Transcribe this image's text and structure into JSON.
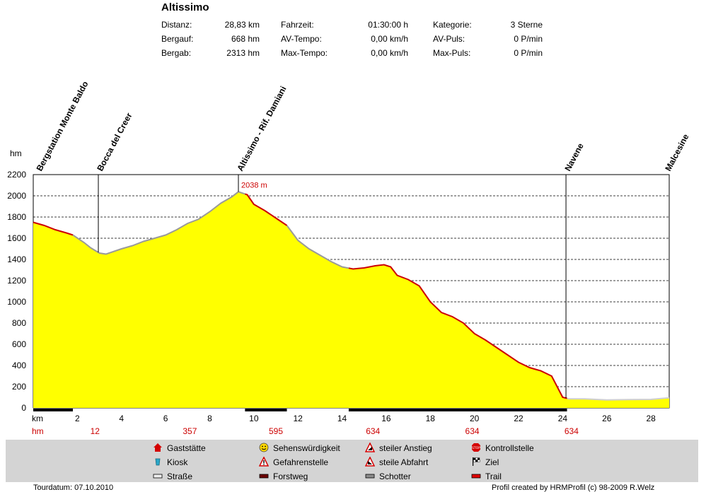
{
  "header": {
    "title": "Altissimo",
    "stats": [
      {
        "label": "Distanz:",
        "value": "28,83 km"
      },
      {
        "label": "Bergauf:",
        "value": "668 hm"
      },
      {
        "label": "Bergab:",
        "value": "2313 hm"
      },
      {
        "label": "Fahrzeit:",
        "value": "01:30:00 h"
      },
      {
        "label": "AV-Tempo:",
        "value": "0,00 km/h"
      },
      {
        "label": "Max-Tempo:",
        "value": "0,00 km/h"
      },
      {
        "label": "Kategorie:",
        "value": "3 Sterne"
      },
      {
        "label": "AV-Puls:",
        "value": "0 P/min"
      },
      {
        "label": "Max-Puls:",
        "value": "0 P/min"
      }
    ]
  },
  "chart_data": {
    "type": "area",
    "title": "Altissimo",
    "ylabel": "hm",
    "xlabel": "km",
    "xlim": [
      0,
      28.83
    ],
    "ylim": [
      0,
      2200
    ],
    "yticks": [
      0,
      200,
      400,
      600,
      800,
      1000,
      1200,
      1400,
      1600,
      1800,
      2000,
      2200
    ],
    "xticks": [
      2,
      4,
      6,
      8,
      10,
      12,
      14,
      16,
      18,
      20,
      22,
      24,
      26,
      28
    ],
    "grid": true,
    "max_annotation": {
      "x": 9.3,
      "y": 2038,
      "label": "2038 m"
    },
    "profile": [
      [
        0,
        1750
      ],
      [
        0.5,
        1720
      ],
      [
        1,
        1680
      ],
      [
        1.5,
        1650
      ],
      [
        1.8,
        1630
      ],
      [
        2.3,
        1560
      ],
      [
        2.6,
        1510
      ],
      [
        3.0,
        1460
      ],
      [
        3.3,
        1450
      ],
      [
        4.0,
        1500
      ],
      [
        4.5,
        1530
      ],
      [
        5.0,
        1570
      ],
      [
        5.5,
        1600
      ],
      [
        6.0,
        1630
      ],
      [
        6.5,
        1680
      ],
      [
        7.0,
        1740
      ],
      [
        7.5,
        1780
      ],
      [
        8.0,
        1850
      ],
      [
        8.5,
        1930
      ],
      [
        9.0,
        1990
      ],
      [
        9.3,
        2038
      ],
      [
        9.7,
        2010
      ],
      [
        10.0,
        1920
      ],
      [
        10.5,
        1860
      ],
      [
        11.0,
        1790
      ],
      [
        11.5,
        1720
      ],
      [
        12.0,
        1580
      ],
      [
        12.5,
        1500
      ],
      [
        13.0,
        1440
      ],
      [
        13.5,
        1380
      ],
      [
        14.0,
        1330
      ],
      [
        14.5,
        1310
      ],
      [
        15.0,
        1320
      ],
      [
        15.5,
        1340
      ],
      [
        15.9,
        1350
      ],
      [
        16.2,
        1330
      ],
      [
        16.5,
        1250
      ],
      [
        17.0,
        1210
      ],
      [
        17.5,
        1150
      ],
      [
        18.0,
        1000
      ],
      [
        18.5,
        900
      ],
      [
        19.0,
        860
      ],
      [
        19.5,
        800
      ],
      [
        20.0,
        700
      ],
      [
        20.5,
        640
      ],
      [
        21.0,
        570
      ],
      [
        21.5,
        500
      ],
      [
        22.0,
        430
      ],
      [
        22.5,
        380
      ],
      [
        23.0,
        350
      ],
      [
        23.5,
        300
      ],
      [
        24.0,
        100
      ],
      [
        24.3,
        85
      ],
      [
        25.0,
        85
      ],
      [
        26.0,
        75
      ],
      [
        27.0,
        78
      ],
      [
        28.0,
        80
      ],
      [
        28.83,
        95
      ]
    ],
    "segments": [
      {
        "from": 0,
        "to": 1.8,
        "surface": "Trail"
      },
      {
        "from": 1.8,
        "to": 9.6,
        "surface": "Schotter"
      },
      {
        "from": 9.6,
        "to": 11.5,
        "surface": "Trail"
      },
      {
        "from": 11.5,
        "to": 14.3,
        "surface": "Schotter"
      },
      {
        "from": 14.3,
        "to": 24.2,
        "surface": "Trail"
      },
      {
        "from": 24.2,
        "to": 28.83,
        "surface": "Straße"
      }
    ],
    "waypoints": [
      {
        "km": 0.2,
        "label": "Bergstation Monte Baldo",
        "marker": false
      },
      {
        "km": 2.95,
        "label": "Bocca del Creer",
        "marker": true
      },
      {
        "km": 9.3,
        "label": "Altissimo - Rif. Damiani",
        "marker": true
      },
      {
        "km": 24.15,
        "label": "Navene",
        "marker": true
      },
      {
        "km": 28.7,
        "label": "Malcesine",
        "marker": false
      }
    ],
    "hm_labels": [
      {
        "km": 2.8,
        "value": "12"
      },
      {
        "km": 7.1,
        "value": "357"
      },
      {
        "km": 11.0,
        "value": "595"
      },
      {
        "km": 15.4,
        "value": "634"
      },
      {
        "km": 19.9,
        "value": "634"
      },
      {
        "km": 24.4,
        "value": "634"
      }
    ],
    "km_axis_label": "km",
    "hm_axis_label": "hm"
  },
  "colors": {
    "fill": "#ffff00",
    "trail": "#cc0000",
    "schotter": "#9a9a9a",
    "strasse": "#cfcfcf",
    "grid": "#000000",
    "annotation": "#cc0000",
    "legend_bg": "#d4d4d4"
  },
  "legend": [
    {
      "icon": "house-icon",
      "label": "Gaststätte"
    },
    {
      "icon": "smiley-icon",
      "label": "Sehenswürdigkeit"
    },
    {
      "icon": "steep-climb-icon",
      "label": "steiler Anstieg"
    },
    {
      "icon": "stop-sign-icon",
      "label": "Kontrollstelle"
    },
    {
      "icon": "kiosk-icon",
      "label": "Kiosk"
    },
    {
      "icon": "danger-icon",
      "label": "Gefahrenstelle"
    },
    {
      "icon": "steep-descent-icon",
      "label": "steile Abfahrt"
    },
    {
      "icon": "finish-flag-icon",
      "label": "Ziel"
    },
    {
      "icon": "road-swatch-icon",
      "label": "Straße"
    },
    {
      "icon": "forest-road-swatch-icon",
      "label": "Forstweg"
    },
    {
      "icon": "gravel-swatch-icon",
      "label": "Schotter"
    },
    {
      "icon": "trail-swatch-icon",
      "label": "Trail"
    }
  ],
  "footer": {
    "date": "Tourdatum: 07.10.2010",
    "credit": "Profil created by HRMProfil (c) 98-2009 R.Welz"
  }
}
